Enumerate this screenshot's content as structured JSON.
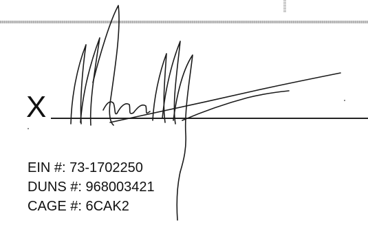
{
  "signature_line": {
    "mark": "X"
  },
  "identifiers": [
    {
      "label": "EIN #:",
      "value": "73-1702250"
    },
    {
      "label": "DUNS #:",
      "value": "968003421"
    },
    {
      "label": "CAGE #:",
      "value": "6CAK2"
    }
  ]
}
